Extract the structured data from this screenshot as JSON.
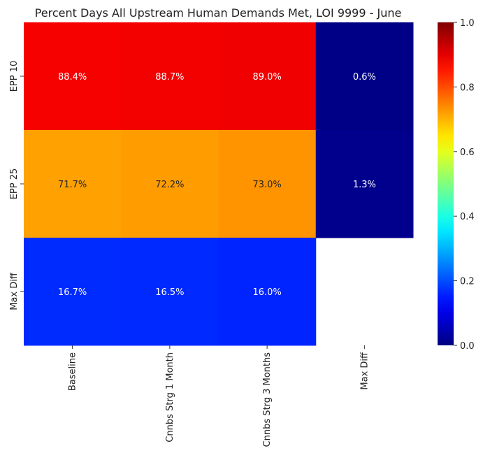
{
  "chart_data": {
    "type": "heatmap",
    "title": "Percent Days All Upstream Human Demands Met, LOI 9999 - June",
    "xlabel": "",
    "ylabel": "",
    "x_categories": [
      "Baseline",
      "Cnnbs Strg 1 Month",
      "Cnnbs Strg 3 Months",
      "Max Diff"
    ],
    "y_categories": [
      "EPP 10",
      "EPP 25",
      "Max Diff"
    ],
    "values": [
      [
        0.884,
        0.887,
        0.89,
        0.006
      ],
      [
        0.717,
        0.722,
        0.73,
        0.013
      ],
      [
        0.167,
        0.165,
        0.16,
        null
      ]
    ],
    "annotations": [
      [
        "88.4%",
        "88.7%",
        "89.0%",
        "0.6%"
      ],
      [
        "71.7%",
        "72.2%",
        "73.0%",
        "1.3%"
      ],
      [
        "16.7%",
        "16.5%",
        "16.0%",
        ""
      ]
    ],
    "colormap": "jet",
    "vmin": 0.0,
    "vmax": 1.0,
    "colorbar_ticks": [
      "0.0",
      "0.2",
      "0.4",
      "0.6",
      "0.8",
      "1.0"
    ],
    "colorbar_tick_values": [
      0.0,
      0.2,
      0.4,
      0.6,
      0.8,
      1.0
    ],
    "grid": false,
    "legend": "colorbar-right"
  }
}
